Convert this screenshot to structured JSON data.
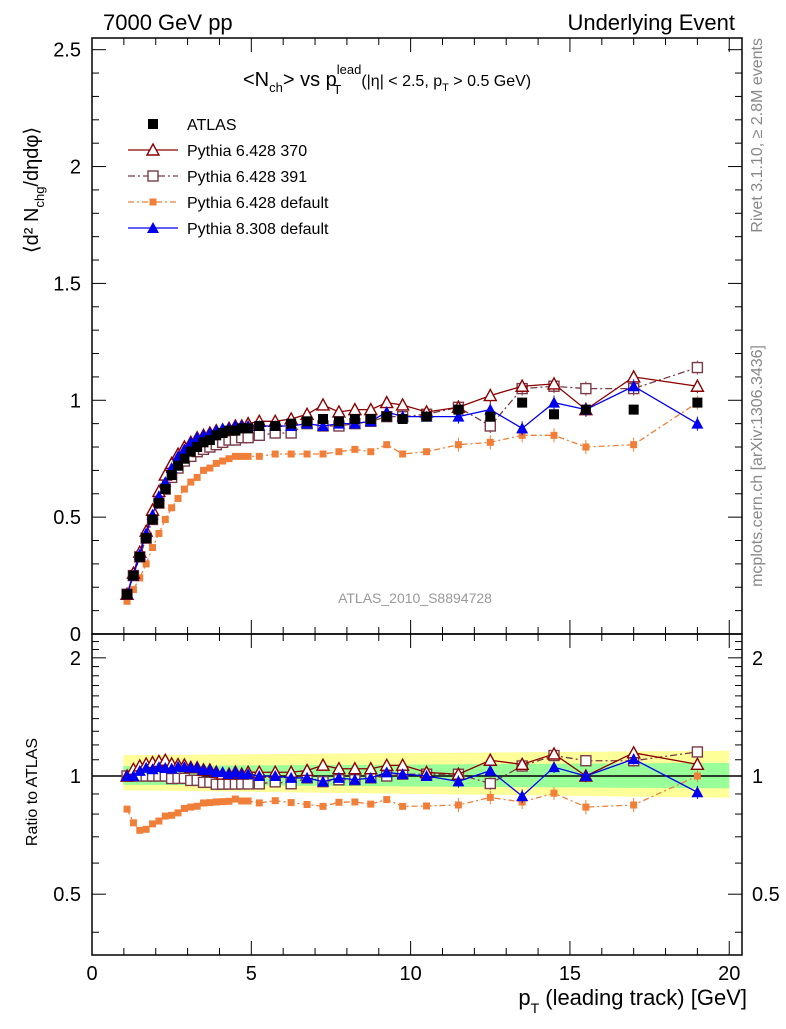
{
  "header": {
    "left": "7000 GeV pp",
    "right": "Underlying Event"
  },
  "side_labels": {
    "rivet": "Rivet 3.1.10, ≥ 2.8M events",
    "mcplots": "mcplots.cern.ch [arXiv:1306.3436]"
  },
  "analysis_id": "ATLAS_2010_S8894728",
  "titles": {
    "main": "<N",
    "main_sub": "ch",
    "main_mid": "> vs p",
    "main_sup": "lead",
    "main_sub2": "T",
    "cut_text_a": "(|η| < 2.5, p",
    "cut_sub": "T",
    "cut_text_b": " > 0.5 GeV)",
    "ylabel_top": "⟨d² N",
    "ylabel_top_sub": "chg",
    "ylabel_top_end": "/dηdφ⟩",
    "ylabel_ratio": "Ratio to ATLAS",
    "xlabel": "p",
    "xlabel_sub": "T",
    "xlabel_end": " (leading track) [GeV]"
  },
  "colors": {
    "ATLAS": "#000000",
    "Pythia 6.428 370": "#8b0000",
    "Pythia 6.428 391": "#7a3b48",
    "Pythia 6.428 default": "#f07f3a",
    "Pythia 8.308 default": "#0000ee",
    "band_inner": "#99ff99",
    "band_outer": "#ffff99"
  },
  "chart_data": {
    "type": "line",
    "xlim": [
      0,
      20.4
    ],
    "ylim": [
      0,
      2.55
    ],
    "ratio_ylim": [
      0.35,
      2.3
    ],
    "x_ticks": [
      "0",
      "5",
      "10",
      "15",
      "20"
    ],
    "y_ticks": [
      "0",
      "0.5",
      "1",
      "1.5",
      "2",
      "2.5"
    ],
    "ratio_ticks": [
      "0.5",
      "1",
      "2"
    ],
    "x": [
      1.1,
      1.3,
      1.5,
      1.7,
      1.9,
      2.1,
      2.3,
      2.5,
      2.7,
      2.9,
      3.1,
      3.3,
      3.5,
      3.7,
      3.9,
      4.1,
      4.3,
      4.5,
      4.7,
      4.9,
      5.25,
      5.75,
      6.25,
      6.75,
      7.25,
      7.75,
      8.25,
      8.75,
      9.25,
      9.75,
      10.5,
      11.5,
      12.5,
      13.5,
      14.5,
      15.5,
      17.0,
      19.0
    ],
    "series": [
      {
        "name": "ATLAS",
        "marker": "square-filled",
        "values": [
          0.17,
          0.25,
          0.33,
          0.41,
          0.49,
          0.56,
          0.62,
          0.68,
          0.72,
          0.75,
          0.78,
          0.8,
          0.82,
          0.83,
          0.85,
          0.86,
          0.87,
          0.87,
          0.88,
          0.88,
          0.89,
          0.89,
          0.9,
          0.91,
          0.92,
          0.91,
          0.92,
          0.92,
          0.93,
          0.92,
          0.93,
          0.96,
          0.93,
          0.99,
          0.94,
          0.96,
          0.96,
          0.99
        ]
      },
      {
        "name": "Pythia 6.428 370",
        "marker": "triangle-open",
        "values": [
          0.17,
          0.26,
          0.35,
          0.44,
          0.53,
          0.61,
          0.68,
          0.73,
          0.77,
          0.8,
          0.82,
          0.84,
          0.85,
          0.86,
          0.87,
          0.87,
          0.88,
          0.89,
          0.89,
          0.9,
          0.91,
          0.91,
          0.92,
          0.94,
          0.98,
          0.95,
          0.96,
          0.96,
          0.99,
          0.98,
          0.95,
          0.97,
          1.02,
          1.06,
          1.07,
          0.96,
          1.1,
          1.06
        ]
      },
      {
        "name": "Pythia 6.428 391",
        "marker": "square-open",
        "values": [
          0.17,
          0.25,
          0.33,
          0.41,
          0.49,
          0.56,
          0.62,
          0.67,
          0.71,
          0.74,
          0.76,
          0.78,
          0.79,
          0.8,
          0.81,
          0.82,
          0.83,
          0.83,
          0.84,
          0.84,
          0.85,
          0.86,
          0.86,
          0.9,
          0.89,
          0.89,
          0.9,
          0.91,
          0.93,
          0.93,
          0.94,
          0.97,
          0.89,
          1.05,
          1.06,
          1.05,
          1.05,
          1.14
        ]
      },
      {
        "name": "Pythia 6.428 default",
        "marker": "square-small",
        "values": [
          0.14,
          0.19,
          0.24,
          0.3,
          0.37,
          0.43,
          0.49,
          0.54,
          0.58,
          0.62,
          0.65,
          0.67,
          0.7,
          0.71,
          0.73,
          0.74,
          0.75,
          0.76,
          0.76,
          0.76,
          0.76,
          0.77,
          0.77,
          0.77,
          0.77,
          0.78,
          0.79,
          0.78,
          0.81,
          0.77,
          0.78,
          0.81,
          0.82,
          0.85,
          0.85,
          0.8,
          0.81,
          0.99
        ]
      },
      {
        "name": "Pythia 8.308 default",
        "marker": "triangle-filled",
        "values": [
          0.17,
          0.25,
          0.34,
          0.43,
          0.51,
          0.59,
          0.65,
          0.71,
          0.76,
          0.79,
          0.82,
          0.84,
          0.85,
          0.86,
          0.87,
          0.88,
          0.88,
          0.89,
          0.89,
          0.89,
          0.89,
          0.89,
          0.89,
          0.9,
          0.89,
          0.9,
          0.9,
          0.91,
          0.95,
          0.93,
          0.93,
          0.93,
          0.96,
          0.88,
          0.99,
          0.96,
          1.06,
          0.9
        ]
      }
    ]
  }
}
